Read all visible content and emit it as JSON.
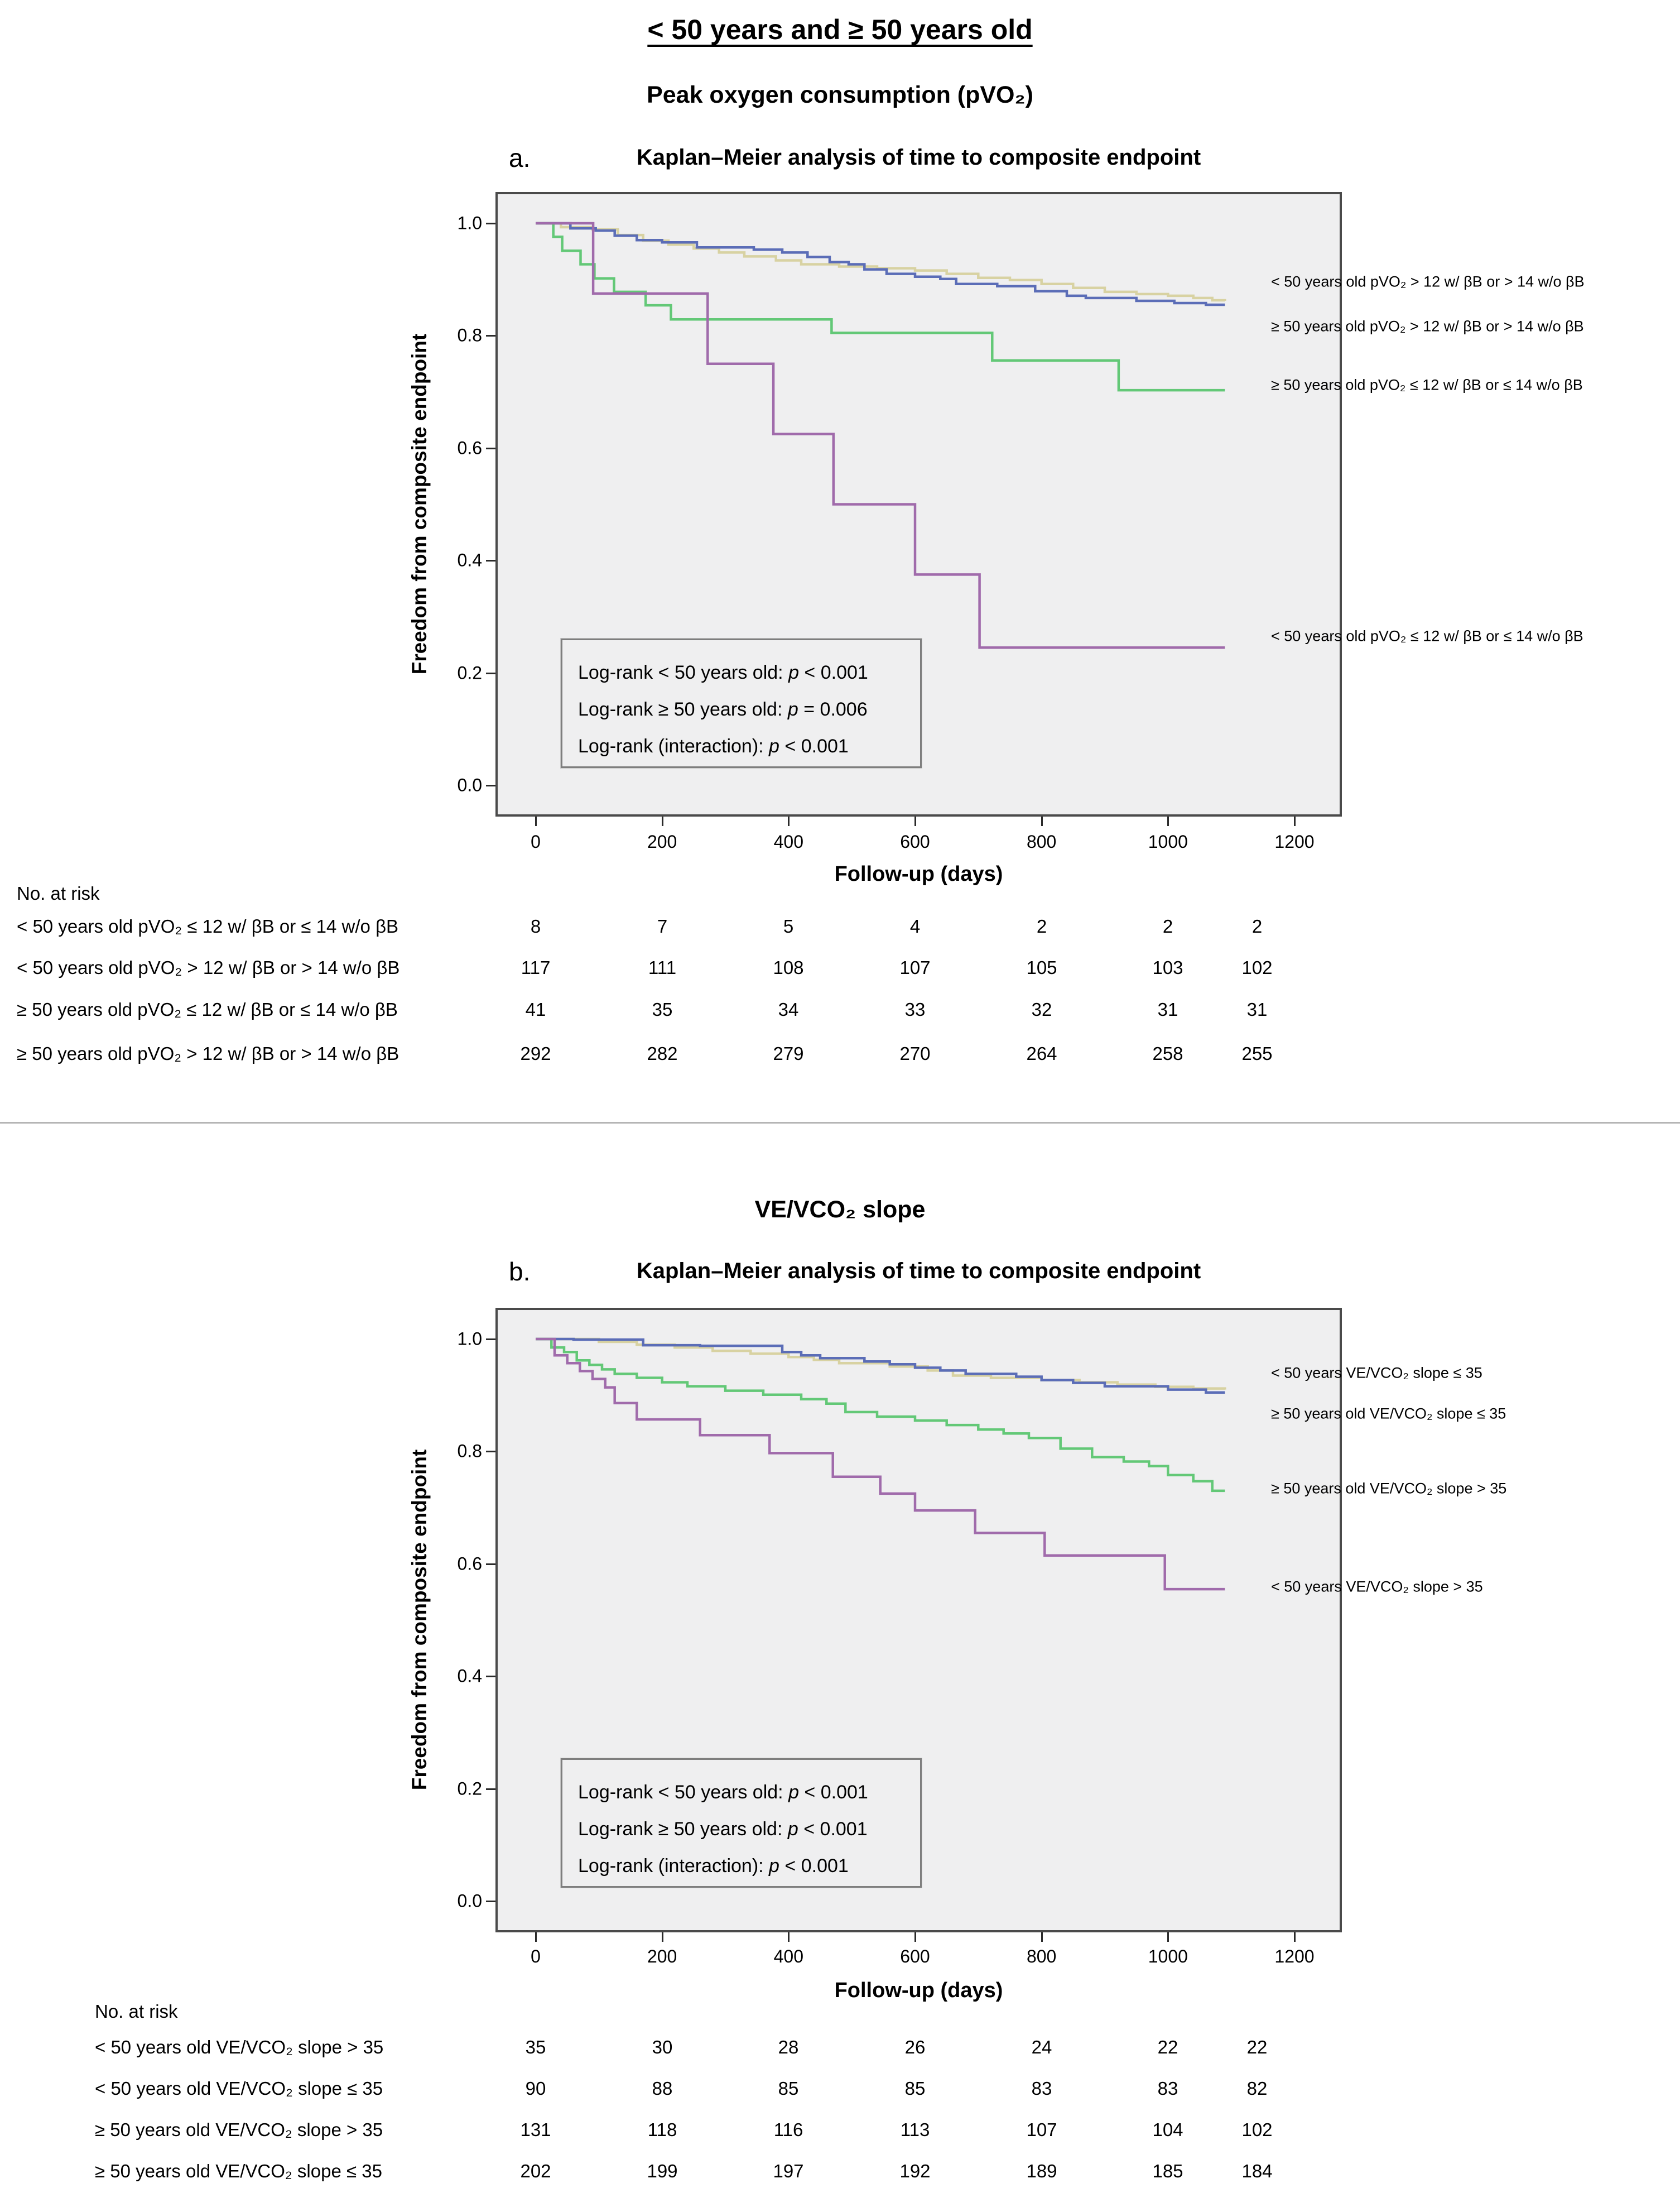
{
  "page": {
    "main_title": "< 50 years and ≥ 50 years old"
  },
  "colors": {
    "blue": "#5b6db7",
    "tan": "#d8d2a2",
    "green": "#63c877",
    "purple": "#a06bab",
    "plot_bg": "#efeff0",
    "plot_border": "#4a4a4a"
  },
  "chart_data": [
    {
      "type": "line",
      "panel_letter": "a.",
      "section_title": "Peak oxygen consumption (pVO₂)",
      "title": "Kaplan–Meier analysis of time to composite endpoint",
      "xlabel": "Follow-up (days)",
      "ylabel": "Freedom from composite endpoint",
      "xlim": [
        0,
        1275
      ],
      "ylim": [
        0,
        1.05
      ],
      "xticks": [
        0,
        200,
        400,
        600,
        800,
        1000,
        1200
      ],
      "yticks": [
        "1.0",
        "0.8",
        "0.6",
        "0.4",
        "0.2",
        "0.0"
      ],
      "grid": false,
      "legend_position": "right-of-curve-ends",
      "series": [
        {
          "name": "≥ 50 years old pVO₂ > 12 w/ βB or > 14 w/o βB",
          "color": "tan",
          "label_v": 0.816,
          "points": [
            [
              0,
              1.0
            ],
            [
              40,
              0.993
            ],
            [
              90,
              0.989
            ],
            [
              130,
              0.979
            ],
            [
              170,
              0.969
            ],
            [
              210,
              0.962
            ],
            [
              250,
              0.955
            ],
            [
              290,
              0.948
            ],
            [
              330,
              0.941
            ],
            [
              380,
              0.934
            ],
            [
              420,
              0.927
            ],
            [
              480,
              0.923
            ],
            [
              540,
              0.92
            ],
            [
              600,
              0.916
            ],
            [
              650,
              0.91
            ],
            [
              700,
              0.903
            ],
            [
              750,
              0.899
            ],
            [
              800,
              0.892
            ],
            [
              850,
              0.885
            ],
            [
              900,
              0.878
            ],
            [
              950,
              0.874
            ],
            [
              1000,
              0.871
            ],
            [
              1040,
              0.867
            ],
            [
              1070,
              0.863
            ],
            [
              1090,
              0.862
            ]
          ]
        },
        {
          "name": "< 50 years old pVO₂ > 12 w/ βB or > 14 w/o βB",
          "color": "blue",
          "label_v": 0.896,
          "points": [
            [
              0,
              1.0
            ],
            [
              55,
              0.991
            ],
            [
              95,
              0.987
            ],
            [
              125,
              0.978
            ],
            [
              160,
              0.97
            ],
            [
              200,
              0.966
            ],
            [
              255,
              0.957
            ],
            [
              345,
              0.953
            ],
            [
              390,
              0.948
            ],
            [
              430,
              0.94
            ],
            [
              465,
              0.931
            ],
            [
              495,
              0.927
            ],
            [
              520,
              0.918
            ],
            [
              555,
              0.91
            ],
            [
              600,
              0.905
            ],
            [
              640,
              0.901
            ],
            [
              665,
              0.892
            ],
            [
              730,
              0.888
            ],
            [
              790,
              0.879
            ],
            [
              840,
              0.871
            ],
            [
              870,
              0.867
            ],
            [
              950,
              0.862
            ],
            [
              1010,
              0.858
            ],
            [
              1060,
              0.855
            ],
            [
              1090,
              0.855
            ]
          ]
        },
        {
          "name": "≥ 50 years old pVO₂ ≤ 12 w/ βB or ≤ 14 w/o βB",
          "color": "green",
          "label_v": 0.712,
          "points": [
            [
              0,
              1.0
            ],
            [
              28,
              0.976
            ],
            [
              42,
              0.951
            ],
            [
              71,
              0.927
            ],
            [
              93,
              0.902
            ],
            [
              124,
              0.878
            ],
            [
              174,
              0.854
            ],
            [
              214,
              0.829
            ],
            [
              468,
              0.805
            ],
            [
              722,
              0.756
            ],
            [
              922,
              0.703
            ],
            [
              1090,
              0.703
            ]
          ]
        },
        {
          "name": "< 50 years old pVO₂ ≤ 12 w/ βB or ≤ 14 w/o βB",
          "color": "purple",
          "label_v": 0.265,
          "points": [
            [
              0,
              1.0
            ],
            [
              91,
              0.875
            ],
            [
              272,
              0.75
            ],
            [
              376,
              0.625
            ],
            [
              471,
              0.5
            ],
            [
              600,
              0.375
            ],
            [
              702,
              0.245
            ],
            [
              1090,
              0.245
            ]
          ]
        }
      ],
      "logrank_lines": [
        {
          "pre": "Log-rank < 50 years old: ",
          "pvar": "p",
          "post": " < 0.001"
        },
        {
          "pre": "Log-rank ≥ 50 years old: ",
          "pvar": "p",
          "post": " = 0.006"
        },
        {
          "pre": "Log-rank (interaction): ",
          "pvar": "p",
          "post": " < 0.001"
        }
      ],
      "risk_table": {
        "header": "No. at risk",
        "rows": [
          {
            "label": "< 50 years old pVO₂ ≤ 12 w/ βB or ≤ 14 w/o βB",
            "values": [
              8,
              7,
              5,
              4,
              2,
              2,
              2
            ]
          },
          {
            "label": "< 50 years old pVO₂ > 12 w/ βB or > 14 w/o βB",
            "values": [
              117,
              111,
              108,
              107,
              105,
              103,
              102
            ]
          },
          {
            "label": "≥ 50 years old pVO₂ ≤ 12 w/ βB or ≤ 14 w/o βB",
            "values": [
              41,
              35,
              34,
              33,
              32,
              31,
              31
            ]
          },
          {
            "label": "≥ 50 years old pVO₂ > 12 w/ βB or > 14 w/o βB",
            "values": [
              292,
              282,
              279,
              270,
              264,
              258,
              255
            ]
          }
        ]
      }
    },
    {
      "type": "line",
      "panel_letter": "b.",
      "section_title": "VE/VCO₂ slope",
      "title": "Kaplan–Meier analysis of time to composite endpoint",
      "xlabel": "Follow-up (days)",
      "ylabel": "Freedom from composite endpoint",
      "xlim": [
        0,
        1275
      ],
      "ylim": [
        0,
        1.05
      ],
      "xticks": [
        0,
        200,
        400,
        600,
        800,
        1000,
        1200
      ],
      "yticks": [
        "1.0",
        "0.8",
        "0.6",
        "0.4",
        "0.2",
        "0.0"
      ],
      "grid": false,
      "legend_position": "right-of-curve-ends",
      "series": [
        {
          "name": "≥ 50 years old VE/VCO₂ slope ≤ 35",
          "color": "tan",
          "label_v": 0.867,
          "points": [
            [
              0,
              1.0
            ],
            [
              100,
              0.995
            ],
            [
              160,
              0.99
            ],
            [
              220,
              0.985
            ],
            [
              280,
              0.979
            ],
            [
              340,
              0.974
            ],
            [
              400,
              0.968
            ],
            [
              440,
              0.963
            ],
            [
              480,
              0.957
            ],
            [
              560,
              0.951
            ],
            [
              620,
              0.944
            ],
            [
              660,
              0.935
            ],
            [
              720,
              0.931
            ],
            [
              800,
              0.927
            ],
            [
              860,
              0.923
            ],
            [
              920,
              0.919
            ],
            [
              980,
              0.915
            ],
            [
              1040,
              0.912
            ],
            [
              1090,
              0.91
            ]
          ]
        },
        {
          "name": "< 50 years VE/VCO₂ slope ≤ 35",
          "color": "blue",
          "label_v": 0.939,
          "points": [
            [
              0,
              1.0
            ],
            [
              60,
              0.999
            ],
            [
              170,
              0.989
            ],
            [
              260,
              0.988
            ],
            [
              390,
              0.977
            ],
            [
              420,
              0.971
            ],
            [
              450,
              0.966
            ],
            [
              520,
              0.96
            ],
            [
              560,
              0.955
            ],
            [
              600,
              0.949
            ],
            [
              640,
              0.944
            ],
            [
              680,
              0.938
            ],
            [
              760,
              0.933
            ],
            [
              800,
              0.927
            ],
            [
              850,
              0.922
            ],
            [
              900,
              0.916
            ],
            [
              1000,
              0.91
            ],
            [
              1060,
              0.905
            ],
            [
              1090,
              0.905
            ]
          ]
        },
        {
          "name": "≥ 50 years old VE/VCO₂ slope > 35",
          "color": "green",
          "label_v": 0.734,
          "points": [
            [
              0,
              1.0
            ],
            [
              25,
              0.985
            ],
            [
              45,
              0.977
            ],
            [
              65,
              0.962
            ],
            [
              85,
              0.954
            ],
            [
              105,
              0.946
            ],
            [
              125,
              0.938
            ],
            [
              160,
              0.931
            ],
            [
              200,
              0.923
            ],
            [
              240,
              0.916
            ],
            [
              300,
              0.908
            ],
            [
              360,
              0.901
            ],
            [
              420,
              0.893
            ],
            [
              460,
              0.885
            ],
            [
              490,
              0.87
            ],
            [
              540,
              0.862
            ],
            [
              600,
              0.855
            ],
            [
              650,
              0.847
            ],
            [
              700,
              0.839
            ],
            [
              740,
              0.832
            ],
            [
              780,
              0.824
            ],
            [
              830,
              0.805
            ],
            [
              880,
              0.79
            ],
            [
              930,
              0.782
            ],
            [
              970,
              0.774
            ],
            [
              1000,
              0.758
            ],
            [
              1040,
              0.747
            ],
            [
              1070,
              0.73
            ],
            [
              1090,
              0.73
            ]
          ]
        },
        {
          "name": "< 50 years VE/VCO₂ slope > 35",
          "color": "purple",
          "label_v": 0.559,
          "points": [
            [
              0,
              1.0
            ],
            [
              30,
              0.971
            ],
            [
              50,
              0.957
            ],
            [
              70,
              0.943
            ],
            [
              90,
              0.929
            ],
            [
              110,
              0.914
            ],
            [
              125,
              0.886
            ],
            [
              160,
              0.857
            ],
            [
              260,
              0.829
            ],
            [
              370,
              0.797
            ],
            [
              470,
              0.755
            ],
            [
              545,
              0.725
            ],
            [
              600,
              0.695
            ],
            [
              695,
              0.655
            ],
            [
              805,
              0.615
            ],
            [
              995,
              0.555
            ],
            [
              1090,
              0.555
            ]
          ]
        }
      ],
      "logrank_lines": [
        {
          "pre": "Log-rank < 50 years old: ",
          "pvar": "p",
          "post": " < 0.001"
        },
        {
          "pre": "Log-rank ≥ 50 years old: ",
          "pvar": "p",
          "post": " < 0.001"
        },
        {
          "pre": "Log-rank (interaction): ",
          "pvar": "p",
          "post": " < 0.001"
        }
      ],
      "risk_table": {
        "header": "No. at risk",
        "rows": [
          {
            "label": "< 50 years old VE/VCO₂ slope > 35",
            "values": [
              35,
              30,
              28,
              26,
              24,
              22,
              22
            ]
          },
          {
            "label": "< 50 years old VE/VCO₂ slope ≤ 35",
            "values": [
              90,
              88,
              85,
              85,
              83,
              83,
              82
            ]
          },
          {
            "label": "≥ 50 years old VE/VCO₂ slope > 35",
            "values": [
              131,
              118,
              116,
              113,
              107,
              104,
              102
            ]
          },
          {
            "label": "≥ 50 years old VE/VCO₂ slope ≤ 35",
            "values": [
              202,
              199,
              197,
              192,
              189,
              185,
              184
            ]
          }
        ]
      }
    }
  ]
}
